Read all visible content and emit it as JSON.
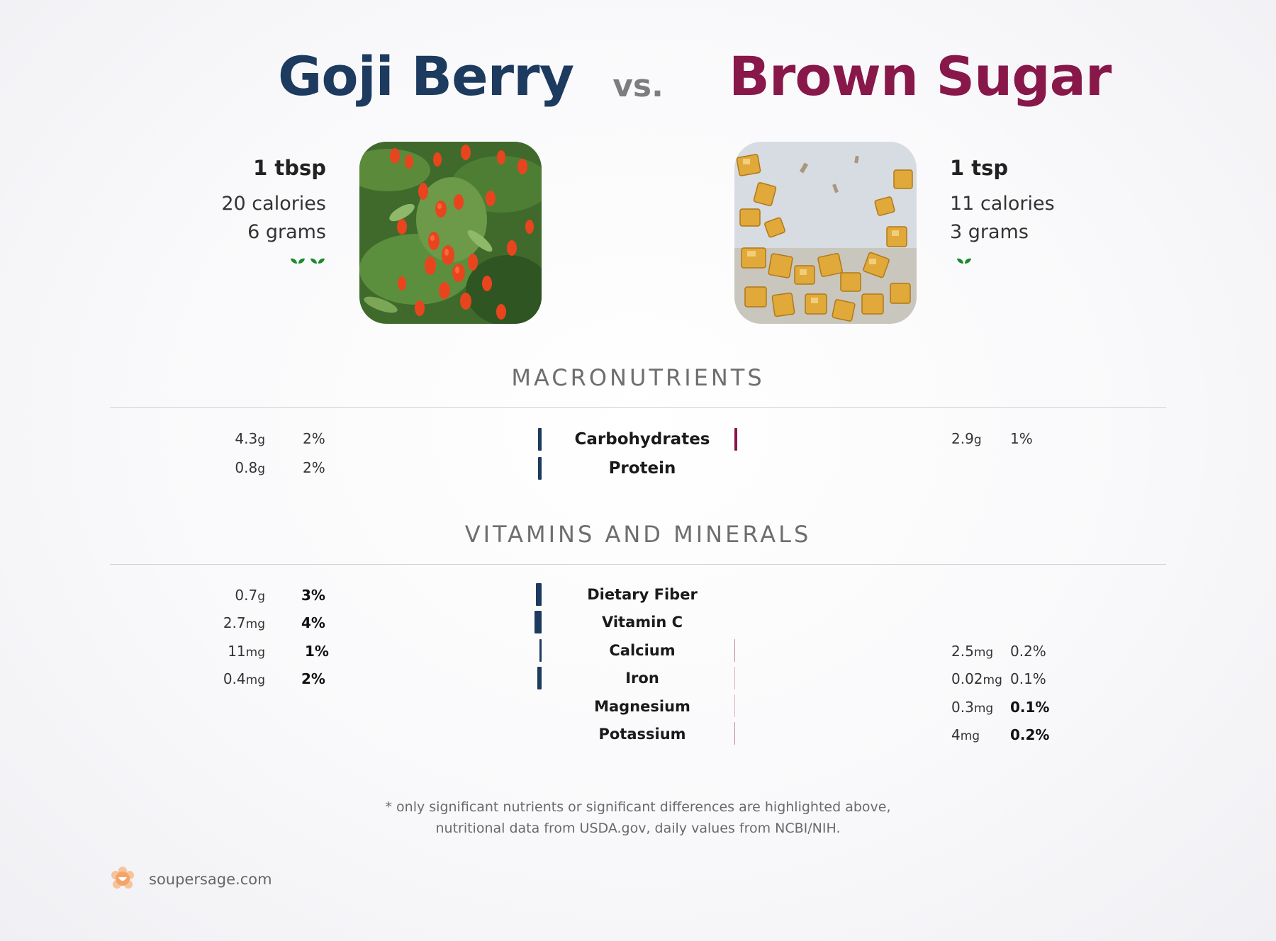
{
  "header": {
    "left_food": "Goji Berry",
    "vs": "vs.",
    "right_food": "Brown Sugar",
    "left_color": "#1d3a5f",
    "right_color": "#88174a"
  },
  "left": {
    "serving": "1 tbsp",
    "calories": "20 calories",
    "grams": "6 grams",
    "sprout_count": 2
  },
  "right": {
    "serving": "1 tsp",
    "calories": "11 calories",
    "grams": "3 grams",
    "sprout_count": 1
  },
  "macros": {
    "title": "MACRONUTRIENTS",
    "rows": [
      {
        "name": "Carbohydrates",
        "left_value": "4.3",
        "left_unit": "g",
        "left_pct": "2%",
        "right_value": "2.9",
        "right_unit": "g",
        "right_pct": "1%"
      },
      {
        "name": "Protein",
        "left_value": "0.8",
        "left_unit": "g",
        "left_pct": "2%",
        "right_value": "",
        "right_unit": "",
        "right_pct": ""
      }
    ]
  },
  "vitamins": {
    "title": "VITAMINS AND MINERALS",
    "rows": [
      {
        "name": "Dietary Fiber",
        "left_value": "0.7",
        "left_unit": "g",
        "left_pct": "3%",
        "right_value": "",
        "right_unit": "",
        "right_pct": ""
      },
      {
        "name": "Vitamin C",
        "left_value": "2.7",
        "left_unit": "mg",
        "left_pct": "4%",
        "right_value": "",
        "right_unit": "",
        "right_pct": ""
      },
      {
        "name": "Calcium",
        "left_value": "11",
        "left_unit": "mg",
        "left_pct": "1%",
        "right_value": "2.5",
        "right_unit": "mg",
        "right_pct": "0.2%"
      },
      {
        "name": "Iron",
        "left_value": "0.4",
        "left_unit": "mg",
        "left_pct": "2%",
        "right_value": "0.02",
        "right_unit": "mg",
        "right_pct": "0.1%"
      },
      {
        "name": "Magnesium",
        "left_value": "",
        "left_unit": "",
        "left_pct": "",
        "right_value": "0.3",
        "right_unit": "mg",
        "right_pct": "0.1%"
      },
      {
        "name": "Potassium",
        "left_value": "",
        "left_unit": "",
        "left_pct": "",
        "right_value": "4",
        "right_unit": "mg",
        "right_pct": "0.2%"
      }
    ]
  },
  "footnote": {
    "line1": "* only significant nutrients or significant differences are highlighted above,",
    "line2": "nutritional data from USDA.gov, daily values from NCBI/NIH."
  },
  "brand": {
    "site": "soupersage.com",
    "logo_color": "#f3a46a"
  }
}
